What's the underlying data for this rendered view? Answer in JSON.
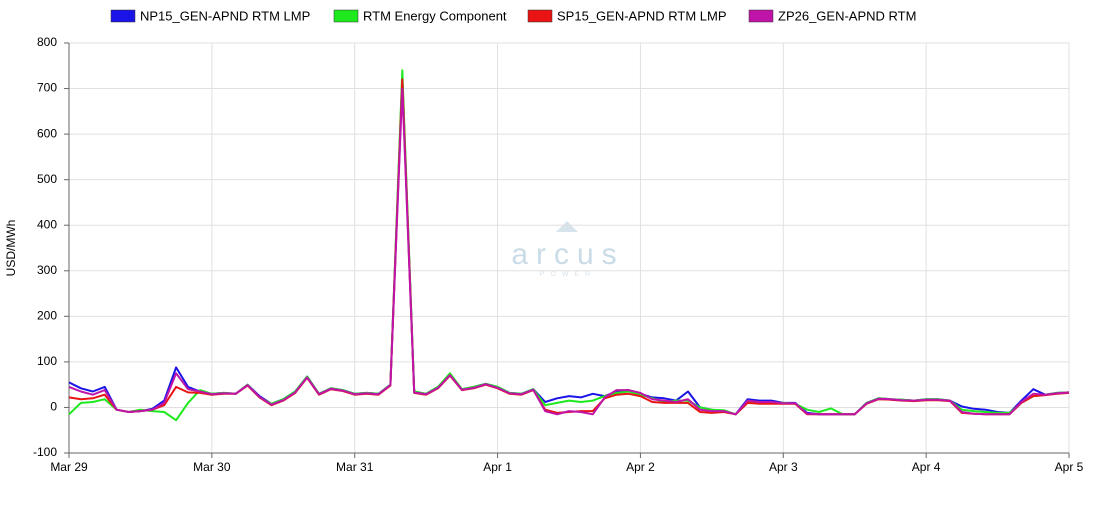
{
  "chart_data": {
    "type": "line",
    "ylabel": "USD/MWh",
    "annotations": [
      "arcus",
      "POWER"
    ],
    "categories": [
      "Mar 29",
      null,
      null,
      null,
      null,
      null,
      null,
      null,
      null,
      null,
      null,
      null,
      "Mar 30",
      null,
      null,
      null,
      null,
      null,
      null,
      null,
      null,
      null,
      null,
      null,
      "Mar 31",
      null,
      null,
      null,
      null,
      null,
      null,
      null,
      null,
      null,
      null,
      null,
      "Apr 1",
      null,
      null,
      null,
      null,
      null,
      null,
      null,
      null,
      null,
      null,
      null,
      "Apr 2",
      null,
      null,
      null,
      null,
      null,
      null,
      null,
      null,
      null,
      null,
      null,
      "Apr 3",
      null,
      null,
      null,
      null,
      null,
      null,
      null,
      null,
      null,
      null,
      null,
      "Apr 4",
      null,
      null,
      null,
      null,
      null,
      null,
      null,
      null,
      null,
      null,
      null,
      "Apr 5"
    ],
    "ylim": [
      -100,
      800
    ],
    "yticks": [
      -100,
      0,
      100,
      200,
      300,
      400,
      500,
      600,
      700,
      800
    ],
    "grid": true,
    "legend": "top",
    "series": [
      {
        "name": "NP15_GEN-APND RTM LMP",
        "color": "#1a14e8",
        "values": [
          55,
          42,
          35,
          45,
          -5,
          -10,
          -8,
          -3,
          15,
          88,
          45,
          35,
          30,
          32,
          30,
          50,
          25,
          8,
          18,
          35,
          68,
          30,
          42,
          38,
          30,
          32,
          30,
          50,
          725,
          35,
          30,
          45,
          72,
          40,
          45,
          52,
          45,
          32,
          30,
          40,
          12,
          20,
          25,
          22,
          30,
          25,
          35,
          38,
          30,
          22,
          20,
          15,
          35,
          0,
          -5,
          -8,
          -15,
          18,
          15,
          15,
          10,
          10,
          -12,
          -15,
          -15,
          -15,
          -15,
          10,
          20,
          18,
          17,
          15,
          18,
          18,
          15,
          2,
          -3,
          -5,
          -10,
          -12,
          15,
          40,
          28,
          32,
          33
        ]
      },
      {
        "name": "RTM Energy Component",
        "color": "#1ee81e",
        "values": [
          -15,
          10,
          12,
          18,
          -5,
          -10,
          -5,
          -8,
          -10,
          -28,
          10,
          38,
          30,
          32,
          30,
          50,
          22,
          8,
          18,
          35,
          68,
          30,
          42,
          38,
          30,
          32,
          30,
          50,
          740,
          35,
          30,
          45,
          75,
          40,
          45,
          52,
          45,
          32,
          30,
          40,
          5,
          10,
          15,
          12,
          15,
          25,
          32,
          35,
          28,
          20,
          12,
          15,
          15,
          0,
          -5,
          -6,
          -15,
          12,
          12,
          10,
          10,
          8,
          -5,
          -10,
          -2,
          -15,
          -15,
          10,
          20,
          18,
          17,
          15,
          18,
          18,
          15,
          -5,
          -8,
          -10,
          -12,
          -12,
          10,
          25,
          28,
          32,
          33
        ]
      },
      {
        "name": "SP15_GEN-APND RTM LMP",
        "color": "#e81414",
        "values": [
          22,
          18,
          20,
          28,
          -5,
          -10,
          -8,
          -5,
          5,
          45,
          33,
          32,
          28,
          30,
          30,
          48,
          22,
          5,
          15,
          32,
          65,
          28,
          40,
          36,
          28,
          30,
          28,
          48,
          720,
          32,
          28,
          42,
          70,
          38,
          42,
          50,
          42,
          30,
          28,
          38,
          -5,
          -12,
          -10,
          -8,
          -8,
          20,
          28,
          30,
          25,
          12,
          10,
          10,
          10,
          -10,
          -12,
          -10,
          -15,
          10,
          8,
          8,
          8,
          8,
          -15,
          -15,
          -15,
          -15,
          -15,
          8,
          18,
          17,
          15,
          14,
          16,
          16,
          14,
          -12,
          -14,
          -15,
          -15,
          -15,
          10,
          25,
          27,
          30,
          32
        ]
      },
      {
        "name": "ZP26_GEN-APND RTM",
        "color": "#c014a8",
        "values": [
          45,
          35,
          28,
          38,
          -5,
          -10,
          -8,
          -5,
          10,
          75,
          40,
          35,
          29,
          31,
          30,
          49,
          23,
          6,
          16,
          33,
          66,
          29,
          41,
          37,
          29,
          31,
          29,
          49,
          700,
          33,
          29,
          43,
          71,
          39,
          43,
          51,
          43,
          31,
          29,
          39,
          -8,
          -15,
          -8,
          -10,
          -15,
          22,
          38,
          38,
          32,
          18,
          15,
          12,
          18,
          -5,
          -8,
          -8,
          -15,
          15,
          12,
          12,
          9,
          9,
          -14,
          -15,
          -15,
          -15,
          -15,
          9,
          19,
          18,
          16,
          15,
          17,
          17,
          15,
          -10,
          -14,
          -15,
          -15,
          -15,
          12,
          30,
          28,
          31,
          33
        ]
      }
    ]
  }
}
